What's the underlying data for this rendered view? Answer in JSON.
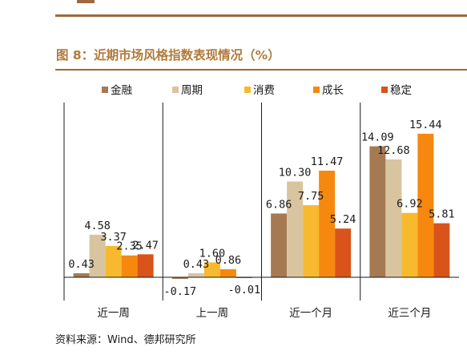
{
  "title": "图 8：近期市场风格指数表现情况（%）",
  "source": "资料来源：Wind、德邦研究所",
  "chart_data": {
    "type": "bar",
    "categories": [
      "近一周",
      "上一周",
      "近一个月",
      "近三个月"
    ],
    "series": [
      {
        "name": "金融",
        "color": "#a57a52",
        "values": [
          0.43,
          -0.17,
          6.86,
          14.09
        ],
        "labels": [
          "0.43",
          "-0.17",
          "6.86",
          "14.09"
        ]
      },
      {
        "name": "周期",
        "color": "#d9c4a0",
        "values": [
          4.58,
          0.43,
          10.3,
          12.68
        ],
        "labels": [
          "4.58",
          "0.43",
          "10.30",
          "12.68"
        ]
      },
      {
        "name": "消费",
        "color": "#f7b92e",
        "values": [
          3.37,
          1.6,
          7.75,
          6.92
        ],
        "labels": [
          "3.37",
          "1.60",
          "7.75",
          "6.92"
        ]
      },
      {
        "name": "成长",
        "color": "#f6880f",
        "values": [
          2.35,
          0.86,
          11.47,
          15.44
        ],
        "labels": [
          "2.35",
          "0.86",
          "11.47",
          "15.44"
        ]
      },
      {
        "name": "稳定",
        "color": "#d9541a",
        "values": [
          2.47,
          -0.01,
          5.24,
          5.81
        ],
        "labels": [
          "2.47",
          "-0.01",
          "5.24",
          "5.81"
        ]
      }
    ],
    "legend_position": "top",
    "grid": false
  }
}
